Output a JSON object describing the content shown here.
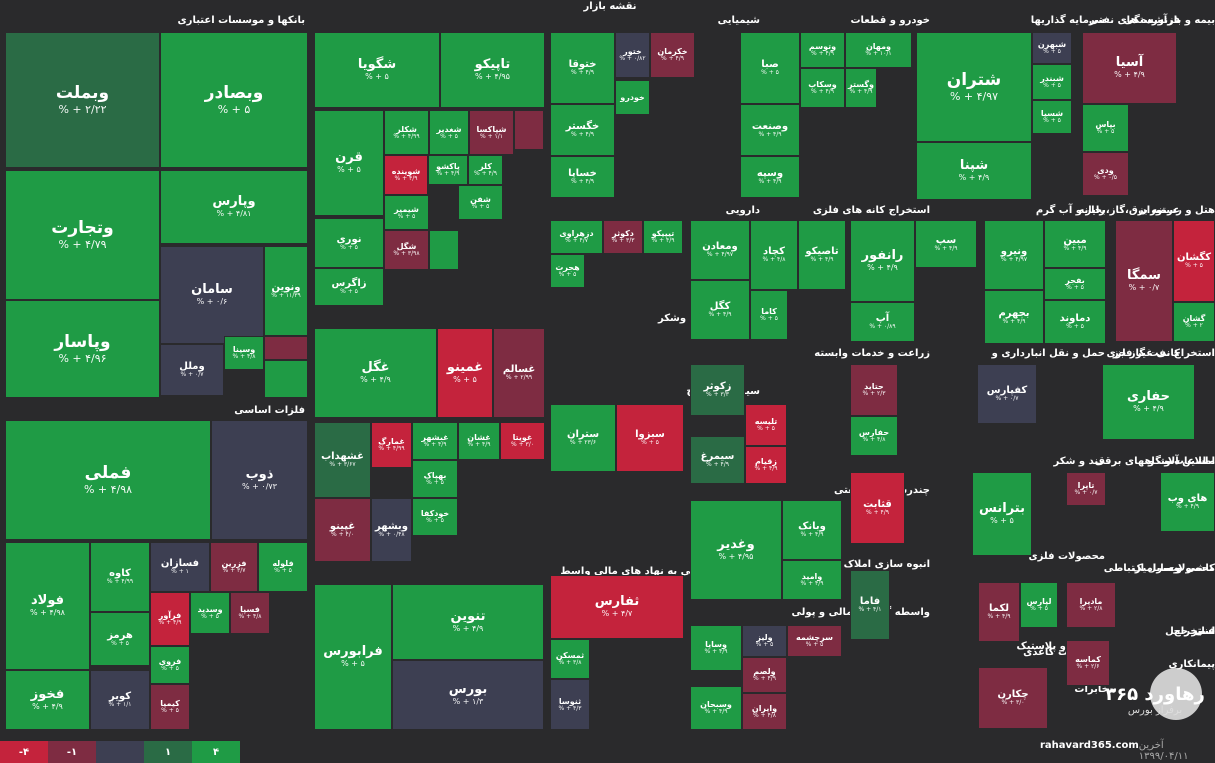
{
  "map_title": "نقشه بازار",
  "legend": [
    {
      "label": "-۴",
      "color": "#c4233c"
    },
    {
      "label": "-۱",
      "color": "#7e2c42"
    },
    {
      "label": "",
      "color": "#3d3f52"
    },
    {
      "label": "۱",
      "color": "#2a6b45"
    },
    {
      "label": "۴",
      "color": "#1f9b45"
    }
  ],
  "footer": {
    "site": "rahavard365.com",
    "date": "آخرین ۱۳۹۹/۰۴/۱۱"
  },
  "brand": {
    "name": "رهاورد ۳۶۵",
    "sub": "برفراز بورس"
  },
  "sectors": [
    {
      "label": "بانکها و موسسات اعتباری"
    },
    {
      "label": "شیمیایی"
    },
    {
      "label": "خودرو و قطعات"
    },
    {
      "label": "سرمایه گذاریها"
    },
    {
      "label": "فرآورده های نفتی"
    },
    {
      "label": "بیمه و بازنشستگی"
    },
    {
      "label": "دارویی"
    },
    {
      "label": "استخراج کانه های فلزی"
    },
    {
      "label": "رایانه"
    },
    {
      "label": "عرضه برق،گاز،بخار و آب گرم"
    },
    {
      "label": "هتل و رستوران"
    },
    {
      "label": "غذایی بجز قند وشکر"
    },
    {
      "label": "سیمان آهک گچ"
    },
    {
      "label": "زراعت و خدمات وابسته"
    },
    {
      "label": "حمل و نقل انبارداری و"
    },
    {
      "label": "کانی غیر فلزی"
    },
    {
      "label": "استخراج نفت گاز جز"
    },
    {
      "label": "فلزات اساسی"
    },
    {
      "label": "چندرشته ای صنعتی"
    },
    {
      "label": "قند و شکر"
    },
    {
      "label": "دستگاههای برقی"
    },
    {
      "label": "ماشین آلات و"
    },
    {
      "label": "اطلاعات و"
    },
    {
      "label": "فعالیتهای کمکی به نهاد های مالی واسط"
    },
    {
      "label": "انبوه سازی املاک و مستغلات"
    },
    {
      "label": "محصولات فلزی"
    },
    {
      "label": "وسایل ارتباطی"
    },
    {
      "label": "محصولات"
    },
    {
      "label": "کاشی و سرامیک"
    },
    {
      "label": "واسطه گریهای مالی و پولی"
    },
    {
      "label": "لاستیک و پلاستیک"
    },
    {
      "label": "استخراج"
    },
    {
      "label": "سایر حمل"
    },
    {
      "label": "استخر"
    },
    {
      "label": "فنی"
    },
    {
      "label": "محصولات کاغذی"
    },
    {
      "label": "پیمانکاری"
    },
    {
      "label": "مخابرات"
    }
  ],
  "tiles": [
    {
      "sym": "وبملت",
      "chg": "% + ۲/۲۲",
      "color": "g-dark"
    },
    {
      "sym": "وبصادر",
      "chg": "% + ۵",
      "color": "g-strong"
    },
    {
      "sym": "وتجارت",
      "chg": "% + ۴/۷۹",
      "color": "g-strong"
    },
    {
      "sym": "وپارس",
      "chg": "% + ۴/۸۱",
      "color": "g-strong"
    },
    {
      "sym": "سامان",
      "chg": "% + ۰/۶",
      "color": "neutral"
    },
    {
      "sym": "ونوین",
      "chg": "% + ۱۱/۳۹",
      "color": "g-strong"
    },
    {
      "sym": "وپاسار",
      "chg": "% + ۴/۹۶",
      "color": "g-strong"
    },
    {
      "sym": "وسینا",
      "chg": "% + ۴/۸",
      "color": "g-strong"
    },
    {
      "sym": "وملل",
      "chg": "% + ۰/۷",
      "color": "neutral"
    },
    {
      "sym": "",
      "chg": "",
      "color": "r-mid"
    },
    {
      "sym": "",
      "chg": "",
      "color": "g-strong"
    },
    {
      "sym": "شگویا",
      "chg": "% + ۵",
      "color": "g-strong"
    },
    {
      "sym": "تاپیکو",
      "chg": "% + ۴/۹۵",
      "color": "g-strong"
    },
    {
      "sym": "قرن",
      "chg": "% + ۵",
      "color": "g-strong"
    },
    {
      "sym": "شکلر",
      "chg": "% + ۴/۹۹",
      "color": "g-strong"
    },
    {
      "sym": "شغدیر",
      "chg": "% + ۵",
      "color": "g-strong"
    },
    {
      "sym": "شپاکسا",
      "chg": "% + ۱/۱",
      "color": "r-mid"
    },
    {
      "sym": "شوینده",
      "chg": "% + ۴/۹",
      "color": "r-strong"
    },
    {
      "sym": "پاکشو",
      "chg": "% + ۴/۹",
      "color": "g-strong"
    },
    {
      "sym": "کلر",
      "chg": "% + ۴/۹",
      "color": "g-strong"
    },
    {
      "sym": "شیمیر",
      "chg": "% + ۵",
      "color": "g-strong"
    },
    {
      "sym": "شفن",
      "chg": "% + ۵",
      "color": "g-strong"
    },
    {
      "sym": "نوری",
      "chg": "% + ۵",
      "color": "g-strong"
    },
    {
      "sym": "شگل",
      "chg": "% + ۳/۹۸",
      "color": "r-mid"
    },
    {
      "sym": "زاگرس",
      "chg": "% + ۵",
      "color": "g-strong"
    },
    {
      "sym": "",
      "chg": "",
      "color": "g-strong"
    },
    {
      "sym": "",
      "chg": "",
      "color": "r-mid"
    },
    {
      "sym": "غگل",
      "chg": "% + ۴/۹",
      "color": "g-strong"
    },
    {
      "sym": "غمینو",
      "chg": "% + ۵",
      "color": "r-strong"
    },
    {
      "sym": "غسالم",
      "chg": "% + ۲/۹۹",
      "color": "r-mid"
    },
    {
      "sym": "غشهداب",
      "chg": "% + ۳/۶۷",
      "color": "g-dark"
    },
    {
      "sym": "غمارگ",
      "chg": "% + ۴/۹۹",
      "color": "r-strong"
    },
    {
      "sym": "غبشهر",
      "chg": "% + ۴/۹",
      "color": "g-strong"
    },
    {
      "sym": "غشان",
      "chg": "% + ۴/۹",
      "color": "g-strong"
    },
    {
      "sym": "غویتا",
      "chg": "% + ۳/۰",
      "color": "r-strong"
    },
    {
      "sym": "بهپاک",
      "chg": "% + ۵",
      "color": "g-strong"
    },
    {
      "sym": "خودکفا",
      "chg": "% + ۵",
      "color": "g-strong"
    },
    {
      "sym": "غپینو",
      "chg": "% + ۴/۰",
      "color": "r-mid"
    },
    {
      "sym": "وبشهر",
      "chg": "% + ۰/۴۸",
      "color": "neutral"
    },
    {
      "sym": "خودرو",
      "chg": "",
      "color": "g-strong"
    },
    {
      "sym": "خکرمان",
      "chg": "% + ۴/۹",
      "color": "r-mid"
    },
    {
      "sym": "ختور",
      "chg": "% + ۰/۸۲",
      "color": "neutral"
    },
    {
      "sym": "ختوقا",
      "chg": "% + ۴/۹",
      "color": "g-strong"
    },
    {
      "sym": "خگستر",
      "chg": "% + ۴/۹",
      "color": "g-strong"
    },
    {
      "sym": "خساپا",
      "chg": "% + ۴/۹",
      "color": "g-strong"
    },
    {
      "sym": "صبا",
      "chg": "% + ۵",
      "color": "g-strong"
    },
    {
      "sym": "وتوسم",
      "chg": "% + ۴/۹",
      "color": "g-strong"
    },
    {
      "sym": "ومهان",
      "chg": "% + ۱۰/۱",
      "color": "g-strong"
    },
    {
      "sym": "وسکاب",
      "chg": "% + ۴/۹",
      "color": "g-strong"
    },
    {
      "sym": "وگستر",
      "chg": "% + ۴/۹",
      "color": "g-strong"
    },
    {
      "sym": "وصنعت",
      "chg": "% + ۴/۹",
      "color": "g-strong"
    },
    {
      "sym": "وسپه",
      "chg": "% + ۴/۹",
      "color": "g-strong"
    },
    {
      "sym": "شتران",
      "chg": "% + ۴/۹۷",
      "color": "g-strong"
    },
    {
      "sym": "شبهرن",
      "chg": "% + ۵",
      "color": "neutral"
    },
    {
      "sym": "شبندر",
      "chg": "% + ۵",
      "color": "g-strong"
    },
    {
      "sym": "شسپا",
      "chg": "% + ۵",
      "color": "g-strong"
    },
    {
      "sym": "شپنا",
      "chg": "% + ۴/۹",
      "color": "g-strong"
    },
    {
      "sym": "آسیا",
      "chg": "% + ۴/۹",
      "color": "r-mid"
    },
    {
      "sym": "بپاس",
      "chg": "% + ۵",
      "color": "g-strong"
    },
    {
      "sym": "ودی",
      "chg": "% + ۰/۵",
      "color": "r-mid"
    },
    {
      "sym": "دزهراوی",
      "chg": "% + ۴/۷",
      "color": "g-strong"
    },
    {
      "sym": "دکوثر",
      "chg": "% + ۳/۳",
      "color": "r-mid"
    },
    {
      "sym": "تیپیکو",
      "chg": "% + ۴/۹",
      "color": "g-strong"
    },
    {
      "sym": "هجرت",
      "chg": "% + ۵",
      "color": "g-strong"
    },
    {
      "sym": "ومعادن",
      "chg": "% + ۴/۹۷",
      "color": "g-strong"
    },
    {
      "sym": "کچاد",
      "chg": "% + ۴/۸",
      "color": "g-strong"
    },
    {
      "sym": "تاصیکو",
      "chg": "% + ۴/۹",
      "color": "g-strong"
    },
    {
      "sym": "کگل",
      "chg": "% + ۴/۹",
      "color": "g-strong"
    },
    {
      "sym": "کاما",
      "chg": "% + ۵",
      "color": "g-strong"
    },
    {
      "sym": "رانفور",
      "chg": "% + ۴/۹",
      "color": "g-strong"
    },
    {
      "sym": "سپ",
      "chg": "% + ۴/۹",
      "color": "g-strong"
    },
    {
      "sym": "آپ",
      "chg": "% + ۰/۸۹",
      "color": "g-strong"
    },
    {
      "sym": "ونیرو",
      "chg": "% + ۴/۹۷",
      "color": "g-strong"
    },
    {
      "sym": "مبین",
      "chg": "% + ۴/۹",
      "color": "g-strong"
    },
    {
      "sym": "بفجر",
      "chg": "% + ۵",
      "color": "g-strong"
    },
    {
      "sym": "بجهرم",
      "chg": "% + ۴/۹",
      "color": "g-strong"
    },
    {
      "sym": "دماوند",
      "chg": "% + ۵",
      "color": "g-strong"
    },
    {
      "sym": "سمگا",
      "chg": "% + ۰/۷",
      "color": "r-mid"
    },
    {
      "sym": "کگشان",
      "chg": "% + ۵",
      "color": "r-strong"
    },
    {
      "sym": "گشان",
      "chg": "% + ۲",
      "color": "g-strong"
    },
    {
      "sym": "فملی",
      "chg": "% + ۴/۹۸",
      "color": "g-strong"
    },
    {
      "sym": "ذوب",
      "chg": "% + ۰/۷۳",
      "color": "neutral"
    },
    {
      "sym": "فولاد",
      "chg": "% + ۴/۹۸",
      "color": "g-strong"
    },
    {
      "sym": "کاوه",
      "chg": "% + ۴/۹۹",
      "color": "g-strong"
    },
    {
      "sym": "فسازان",
      "chg": "% + ۱",
      "color": "neutral"
    },
    {
      "sym": "فزرین",
      "chg": "% + ۳/۷",
      "color": "r-mid"
    },
    {
      "sym": "فلوله",
      "chg": "% + ۵",
      "color": "g-strong"
    },
    {
      "sym": "فرآور",
      "chg": "% + ۴/۹",
      "color": "r-strong"
    },
    {
      "sym": "وسدید",
      "chg": "% + ۵",
      "color": "g-strong"
    },
    {
      "sym": "فسپا",
      "chg": "% + ۴/۸",
      "color": "r-mid"
    },
    {
      "sym": "هرمز",
      "chg": "% + ۵",
      "color": "g-strong"
    },
    {
      "sym": "فروی",
      "chg": "% + ۵",
      "color": "g-strong"
    },
    {
      "sym": "فخوز",
      "chg": "% + ۴/۹",
      "color": "g-strong"
    },
    {
      "sym": "کویر",
      "chg": "% + ۱/۱",
      "color": "neutral"
    },
    {
      "sym": "کیمیا",
      "chg": "% + ۵",
      "color": "r-mid"
    },
    {
      "sym": "فرابورس",
      "chg": "% + ۵",
      "color": "g-strong"
    },
    {
      "sym": "تنوین",
      "chg": "% + ۴/۹",
      "color": "g-strong"
    },
    {
      "sym": "بورس",
      "chg": "% + ۱/۳",
      "color": "neutral"
    },
    {
      "sym": "ستران",
      "chg": "% + ۲۳/۶",
      "color": "g-strong"
    },
    {
      "sym": "سبزوا",
      "chg": "% + ۵",
      "color": "r-strong"
    },
    {
      "sym": "ثفارس",
      "chg": "% + ۴/۷",
      "color": "r-strong"
    },
    {
      "sym": "ثمسکن",
      "chg": "% + ۳/۸",
      "color": "g-strong"
    },
    {
      "sym": "ثنوسا",
      "chg": "% + ۴/۳",
      "color": "neutral"
    },
    {
      "sym": "زکوثر",
      "chg": "% + ۳/۳",
      "color": "g-dark"
    },
    {
      "sym": "تلیسه",
      "chg": "% + ۵",
      "color": "r-strong"
    },
    {
      "sym": "سیمرغ",
      "chg": "% + ۴/۹",
      "color": "g-dark"
    },
    {
      "sym": "زقیام",
      "chg": "% + ۴/۹",
      "color": "r-strong"
    },
    {
      "sym": "وغدیر",
      "chg": "% + ۴/۹۵",
      "color": "g-strong"
    },
    {
      "sym": "وبانک",
      "chg": "% + ۴/۹",
      "color": "g-strong"
    },
    {
      "sym": "وامید",
      "chg": "% + ۴/۹",
      "color": "g-strong"
    },
    {
      "sym": "حتاید",
      "chg": "% + ۲/۳",
      "color": "r-mid"
    },
    {
      "sym": "حفارس",
      "chg": "% + ۴/۸",
      "color": "g-strong"
    },
    {
      "sym": "کفپارس",
      "chg": "% + ۰/۷",
      "color": "neutral"
    },
    {
      "sym": "حفاری",
      "chg": "% + ۴/۹",
      "color": "g-strong"
    },
    {
      "sym": "قثابت",
      "chg": "% + ۴/۹",
      "color": "r-strong"
    },
    {
      "sym": "بترانس",
      "chg": "% + ۵",
      "color": "g-strong"
    },
    {
      "sym": "تاپرا",
      "chg": "% + ۰/۷",
      "color": "r-mid"
    },
    {
      "sym": "های وب",
      "chg": "% + ۴/۹",
      "color": "g-strong"
    },
    {
      "sym": "فاما",
      "chg": "% + ۴/۱",
      "color": "g-dark"
    },
    {
      "sym": "لکما",
      "chg": "% + ۴/۹",
      "color": "r-mid"
    },
    {
      "sym": "لپارس",
      "chg": "% + ۵",
      "color": "g-strong"
    },
    {
      "sym": "مادیرا",
      "chg": "% + ۲/۸",
      "color": "r-mid"
    },
    {
      "sym": "کماسه",
      "chg": "% + ۲/۶",
      "color": "r-mid"
    },
    {
      "sym": "وساپا",
      "chg": "% + ۴/۹",
      "color": "g-strong"
    },
    {
      "sym": "ولیز",
      "chg": "% + ۵",
      "color": "neutral"
    },
    {
      "sym": "سرچشمه",
      "chg": "% + ۵",
      "color": "r-mid"
    },
    {
      "sym": "ولصم",
      "chg": "% + ۴/۹",
      "color": "r-mid"
    },
    {
      "sym": "وسبحان",
      "chg": "% + ۴/۹",
      "color": "g-strong"
    },
    {
      "sym": "وایران",
      "chg": "% + ۴/۸",
      "color": "r-mid"
    },
    {
      "sym": "چکارن",
      "chg": "% + ۳/۰",
      "color": "r-mid"
    }
  ]
}
